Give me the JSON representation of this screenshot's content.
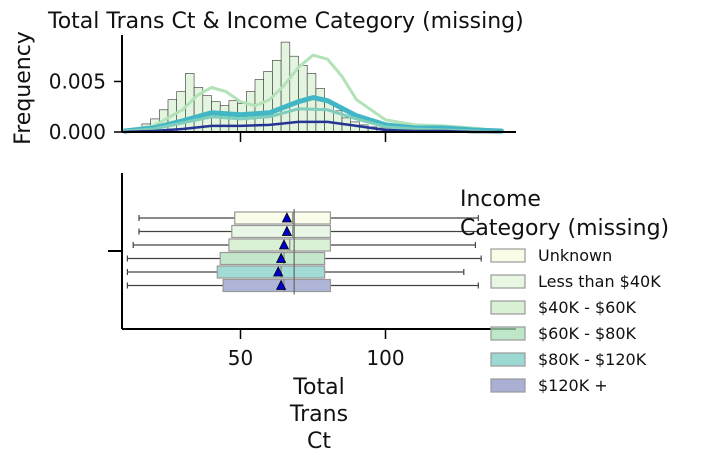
{
  "chart_data": {
    "type": "histogram+boxplot",
    "title": "Total Trans Ct & Income Category (missing)",
    "colors": {
      "Unknown": "#f7fcdf",
      "Less than $40K": "#e0f3db",
      "$40K - $60K": "#ccebc5",
      "$60K - $80K": "#a8ddb5",
      "$80K - $120K": "#7bccc4",
      "$120K +": "#8c96c6",
      "kde_top": "#b2e2b8",
      "kde_mid": "#41b6c4",
      "kde_dark": "#253494",
      "mean_marker": "#0000cc"
    },
    "histogram": {
      "ylabel": "Frequency",
      "ylim": [
        0,
        0.0095
      ],
      "yticks": [
        "0.000",
        "0.005"
      ],
      "ytick_values": [
        0,
        0.005
      ],
      "xlim": [
        5,
        145
      ],
      "bin_edges_start": 10,
      "bin_width": 3,
      "bin_heights": [
        0.0002,
        0.0004,
        0.0008,
        0.0013,
        0.0022,
        0.0032,
        0.004,
        0.0058,
        0.0044,
        0.0036,
        0.003,
        0.0026,
        0.0031,
        0.0028,
        0.004,
        0.0052,
        0.006,
        0.0071,
        0.0089,
        0.0075,
        0.0066,
        0.0058,
        0.0043,
        0.003,
        0.0021,
        0.0014,
        0.001,
        0.0007,
        0.0005,
        0.0004,
        0.0003,
        0.0002,
        0.0001
      ],
      "kde": [
        {
          "name": "top",
          "x": [
            10,
            20,
            30,
            35,
            40,
            45,
            50,
            55,
            60,
            65,
            70,
            75,
            80,
            85,
            90,
            100,
            110,
            120,
            130,
            140
          ],
          "y": [
            0.0001,
            0.0006,
            0.0022,
            0.0036,
            0.0044,
            0.004,
            0.003,
            0.0026,
            0.0032,
            0.0046,
            0.0064,
            0.0076,
            0.0072,
            0.0055,
            0.0032,
            0.0012,
            0.0007,
            0.0006,
            0.0004,
            0.0001
          ]
        },
        {
          "name": "mid",
          "x": [
            10,
            20,
            30,
            40,
            50,
            60,
            70,
            75,
            80,
            90,
            100,
            110,
            120,
            130,
            140
          ],
          "y": [
            0.0001,
            0.0004,
            0.0011,
            0.0019,
            0.0017,
            0.0019,
            0.003,
            0.0034,
            0.0031,
            0.0016,
            0.0007,
            0.0004,
            0.0004,
            0.0002,
            0.0001
          ]
        },
        {
          "name": "low",
          "x": [
            10,
            20,
            30,
            40,
            50,
            60,
            70,
            80,
            90,
            100,
            110,
            120,
            130,
            140
          ],
          "y": [
            0.0001,
            0.0003,
            0.0009,
            0.0015,
            0.0013,
            0.0015,
            0.0023,
            0.0022,
            0.0013,
            0.0005,
            0.0003,
            0.0002,
            0.0001,
            0.0
          ]
        },
        {
          "name": "dark",
          "x": [
            10,
            20,
            30,
            40,
            50,
            60,
            70,
            80,
            90,
            100,
            110,
            120,
            130,
            140
          ],
          "y": [
            0.0,
            0.0001,
            0.0003,
            0.0006,
            0.0006,
            0.0007,
            0.001,
            0.001,
            0.0006,
            0.0002,
            0.0001,
            0.0001,
            0.0,
            0.0
          ]
        }
      ]
    },
    "boxplot": {
      "xlabel": "Total\nTrans\nCt",
      "xticks": [
        50,
        100
      ],
      "xlim": [
        5,
        145
      ],
      "median_line": 68.5,
      "boxes": [
        {
          "name": "Unknown",
          "whislo": 15,
          "q1": 48,
          "med": 68,
          "q3": 81,
          "whishi": 132,
          "mean": 66
        },
        {
          "name": "Less than $40K",
          "whislo": 15,
          "q1": 47,
          "med": 68,
          "q3": 81,
          "whishi": 132,
          "mean": 66
        },
        {
          "name": "$40K - $60K",
          "whislo": 13,
          "q1": 46,
          "med": 67,
          "q3": 81,
          "whishi": 131,
          "mean": 65
        },
        {
          "name": "$60K - $80K",
          "whislo": 11,
          "q1": 43,
          "med": 65,
          "q3": 79,
          "whishi": 133,
          "mean": 64
        },
        {
          "name": "$80K - $120K",
          "whislo": 11,
          "q1": 42,
          "med": 64,
          "q3": 79,
          "whishi": 127,
          "mean": 63
        },
        {
          "name": "$120K +",
          "whislo": 11,
          "q1": 44,
          "med": 65,
          "q3": 81,
          "whishi": 132,
          "mean": 64
        }
      ]
    },
    "legend": {
      "title": "Income\nCategory (missing)",
      "placement": "right",
      "entries": [
        "Unknown",
        "Less than $40K",
        "$40K - $60K",
        "$60K - $80K",
        "$80K - $120K",
        "$120K +"
      ]
    }
  }
}
